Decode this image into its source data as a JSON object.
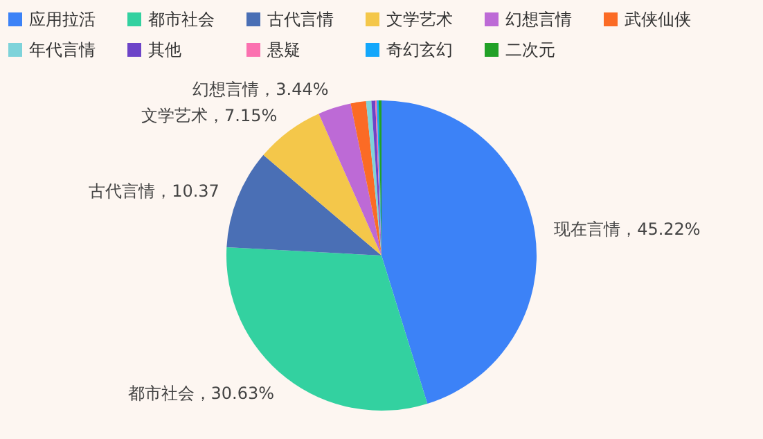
{
  "chart_data": {
    "type": "pie",
    "categories": [
      "应用拉活",
      "都市社会",
      "古代言情",
      "文学艺术",
      "幻想言情",
      "武侠仙侠",
      "年代言情",
      "其他",
      "悬疑",
      "奇幻玄幻",
      "二次元"
    ],
    "values": [
      45.22,
      30.63,
      10.37,
      7.15,
      3.44,
      1.6,
      0.55,
      0.4,
      0.15,
      0.2,
      0.29
    ],
    "colors": [
      "#3c82f7",
      "#33d1a0",
      "#4a6fb5",
      "#f4c74a",
      "#bd6ad6",
      "#fb6b25",
      "#7ed3da",
      "#6d44c8",
      "#fb71b0",
      "#13a7fb",
      "#21a127"
    ],
    "value_labels": [
      "现在言情，45.22%",
      "都市社会，30.63%",
      "古代言情，10.37",
      "文学艺术，7.15%",
      "幻想言情，3.44%",
      null,
      null,
      null,
      null,
      null,
      null
    ],
    "legend": "top"
  }
}
